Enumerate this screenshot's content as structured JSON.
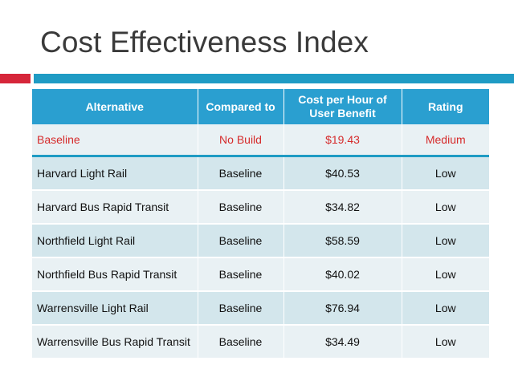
{
  "slide": {
    "title": "Cost Effectiveness Index"
  },
  "colors": {
    "accent_red": "#d6263a",
    "accent_teal": "#1f9bc4",
    "header_bg": "#2a9fd0",
    "baseline_text": "#d62b2b",
    "row_dark": "#d3e6ec",
    "row_light": "#e9f1f4"
  },
  "table": {
    "headers": [
      "Alternative",
      "Compared to",
      "Cost per Hour of User Benefit",
      "Rating"
    ],
    "rows": [
      {
        "alternative": "Baseline",
        "compared_to": "No Build",
        "cost": "$19.43",
        "rating": "Medium"
      },
      {
        "alternative": "Harvard Light Rail",
        "compared_to": "Baseline",
        "cost": "$40.53",
        "rating": "Low"
      },
      {
        "alternative": "Harvard Bus Rapid Transit",
        "compared_to": "Baseline",
        "cost": "$34.82",
        "rating": "Low"
      },
      {
        "alternative": "Northfield Light Rail",
        "compared_to": "Baseline",
        "cost": "$58.59",
        "rating": "Low"
      },
      {
        "alternative": "Northfield Bus Rapid Transit",
        "compared_to": "Baseline",
        "cost": "$40.02",
        "rating": "Low"
      },
      {
        "alternative": "Warrensville Light Rail",
        "compared_to": "Baseline",
        "cost": "$76.94",
        "rating": "Low"
      },
      {
        "alternative": "Warrensville Bus Rapid Transit",
        "compared_to": "Baseline",
        "cost": "$34.49",
        "rating": "Low"
      }
    ]
  }
}
